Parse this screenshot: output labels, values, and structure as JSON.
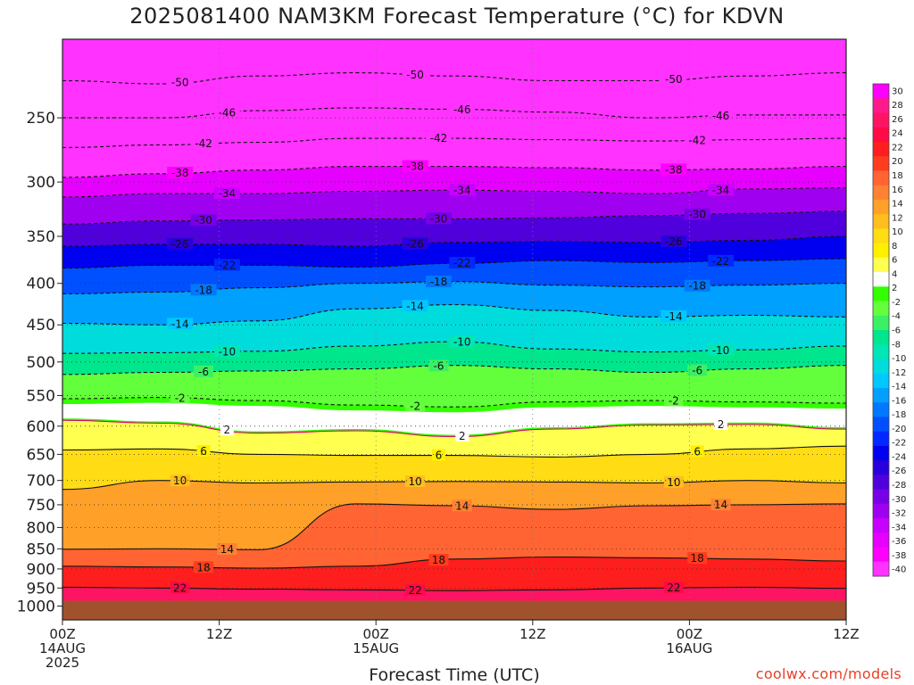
{
  "chart_data": {
    "type": "heatmap",
    "title": "2025081400 NAM3KM Forecast Temperature (°C) for KDVN",
    "xlabel": "Forecast Time (UTC)",
    "ylabel": "",
    "credit": "coolwx.com/models",
    "y_scale": "log-pressure",
    "y_range_hpa": [
      1040,
      200
    ],
    "y_ticks": [
      250,
      300,
      350,
      400,
      450,
      500,
      550,
      600,
      650,
      700,
      750,
      800,
      850,
      900,
      950,
      1000
    ],
    "x_range_hours": [
      0,
      60
    ],
    "x_ticks": [
      {
        "hour": 0,
        "line1": "00Z",
        "line2": "14AUG",
        "line3": "2025"
      },
      {
        "hour": 12,
        "line1": "12Z",
        "line2": "",
        "line3": ""
      },
      {
        "hour": 24,
        "line1": "00Z",
        "line2": "15AUG",
        "line3": ""
      },
      {
        "hour": 36,
        "line1": "12Z",
        "line2": "",
        "line3": ""
      },
      {
        "hour": 48,
        "line1": "00Z",
        "line2": "16AUG",
        "line3": ""
      },
      {
        "hour": 60,
        "line1": "12Z",
        "line2": "",
        "line3": ""
      }
    ],
    "grid": true,
    "surface_below_hpa": 985,
    "surface_color": "#a0522d",
    "colorbar": {
      "labels": [
        30,
        28,
        26,
        24,
        22,
        20,
        18,
        16,
        14,
        12,
        10,
        8,
        6,
        4,
        2,
        -2,
        -4,
        -6,
        -8,
        -10,
        -12,
        -14,
        -16,
        -18,
        -20,
        -22,
        -24,
        -26,
        -28,
        -30,
        -32,
        -34,
        -36,
        -38,
        -40
      ],
      "colors": [
        "#ff00ff",
        "#ff1a8c",
        "#ff1464",
        "#ff0a46",
        "#ff1e1e",
        "#ff3c1e",
        "#ff6432",
        "#ff8232",
        "#ffa028",
        "#ffbe1e",
        "#ffdc14",
        "#fff000",
        "#ffff50",
        "#ffffff",
        "#32ff00",
        "#64ff3c",
        "#3cf064",
        "#00e68c",
        "#00e6b4",
        "#00dcdc",
        "#00c8ff",
        "#00a0ff",
        "#0078ff",
        "#0050ff",
        "#0028ff",
        "#0000f0",
        "#2800dc",
        "#5000dc",
        "#7800e6",
        "#a000f0",
        "#c800ff",
        "#e600ff",
        "#ff00ff",
        "#ff32ff"
      ]
    },
    "isotherm_levels_hpa": [
      {
        "t": 22,
        "p": [
          948,
          950,
          953,
          955,
          957,
          955,
          950,
          948,
          951
        ]
      },
      {
        "t": 18,
        "p": [
          893,
          895,
          898,
          893,
          875,
          870,
          872,
          875,
          880
        ]
      },
      {
        "t": 14,
        "p": [
          851,
          850,
          852,
          748,
          752,
          760,
          752,
          750,
          748
        ]
      },
      {
        "t": 10,
        "p": [
          718,
          700,
          705,
          703,
          702,
          703,
          705,
          700,
          705
        ]
      },
      {
        "t": 6,
        "p": [
          642,
          640,
          650,
          652,
          652,
          655,
          650,
          640,
          635
        ]
      },
      {
        "t": 2,
        "p": [
          590,
          595,
          612,
          608,
          618,
          605,
          598,
          597,
          605
        ]
      },
      {
        "t": -2,
        "p": [
          555,
          553,
          558,
          565,
          568,
          560,
          558,
          560,
          562
        ]
      },
      {
        "t": -6,
        "p": [
          518,
          515,
          513,
          510,
          505,
          510,
          515,
          510,
          505
        ]
      },
      {
        "t": -10,
        "p": [
          488,
          487,
          485,
          478,
          472,
          482,
          486,
          483,
          478
        ]
      },
      {
        "t": -14,
        "p": [
          448,
          450,
          445,
          430,
          425,
          432,
          440,
          438,
          440
        ]
      },
      {
        "t": -18,
        "p": [
          412,
          410,
          405,
          400,
          398,
          402,
          404,
          402,
          400
        ]
      },
      {
        "t": -22,
        "p": [
          383,
          380,
          380,
          382,
          378,
          375,
          377,
          375,
          373
        ]
      },
      {
        "t": -26,
        "p": [
          360,
          358,
          358,
          360,
          356,
          355,
          356,
          354,
          350
        ]
      },
      {
        "t": -30,
        "p": [
          338,
          335,
          334,
          333,
          333,
          332,
          330,
          328,
          326
        ]
      },
      {
        "t": -34,
        "p": [
          313,
          310,
          310,
          308,
          307,
          308,
          310,
          306,
          305
        ]
      },
      {
        "t": -38,
        "p": [
          296,
          293,
          290,
          287,
          287,
          288,
          290,
          289,
          287
        ]
      },
      {
        "t": -42,
        "p": [
          272,
          270,
          268,
          265,
          265,
          266,
          267,
          266,
          265
        ]
      },
      {
        "t": -46,
        "p": [
          250,
          250,
          245,
          243,
          244,
          246,
          250,
          248,
          248
        ]
      },
      {
        "t": -50,
        "p": [
          225,
          227,
          222,
          220,
          222,
          225,
          225,
          222,
          220
        ]
      }
    ]
  }
}
